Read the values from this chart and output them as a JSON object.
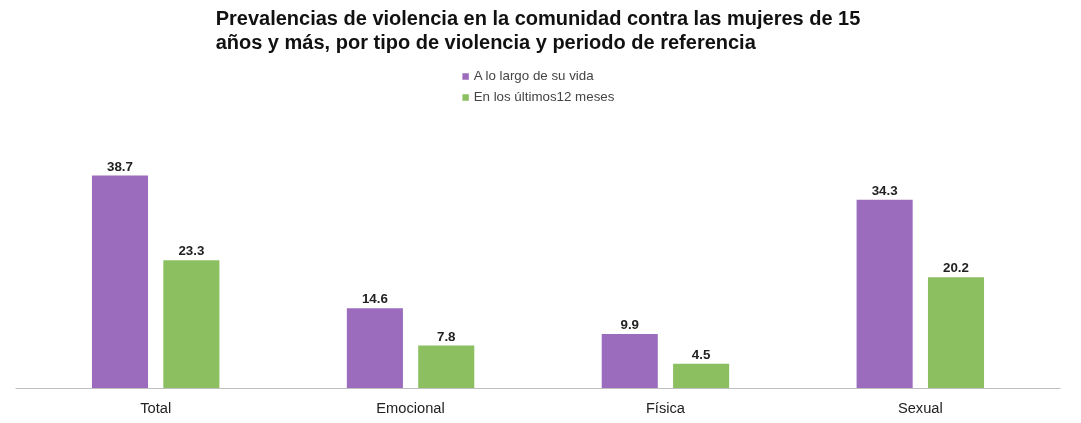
{
  "chart_data": {
    "type": "bar",
    "title": "Prevalencias de violencia en la comunidad contra las mujeres de 15 años y más, por tipo de violencia y periodo de referencia",
    "categories": [
      "Total",
      "Emocional",
      "Física",
      "Sexual"
    ],
    "series": [
      {
        "name": "A lo largo de su vida",
        "color": "#9b6bbd",
        "values": [
          38.7,
          14.6,
          9.9,
          34.3
        ]
      },
      {
        "name": "En los últimos12 meses",
        "color": "#8bbf5f",
        "values": [
          23.3,
          7.8,
          4.5,
          20.2
        ]
      }
    ],
    "data_labels": true,
    "legend": "top",
    "grid": false
  }
}
